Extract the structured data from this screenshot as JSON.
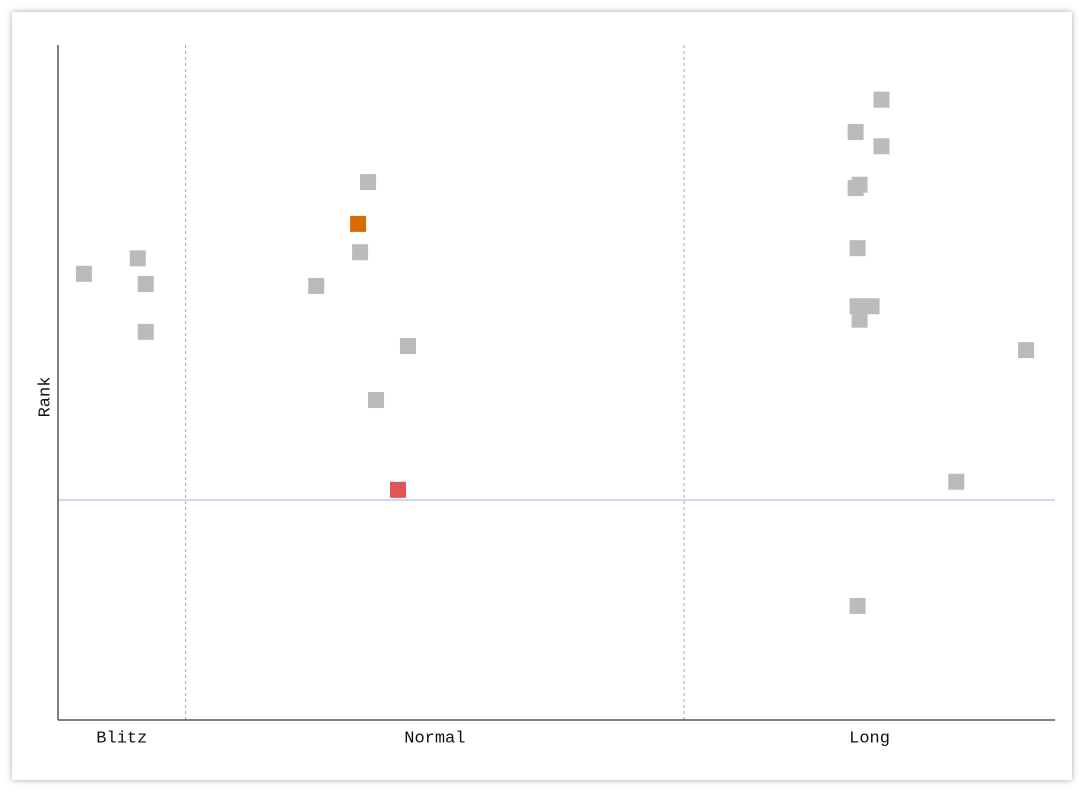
{
  "chart_data": {
    "type": "scatter",
    "ylabel": "Rank",
    "categories": [
      "Blitz",
      "Normal",
      "Long"
    ],
    "dividers": [
      12.8,
      62.8
    ],
    "xlim": [
      0,
      100
    ],
    "ylim": [
      0,
      100
    ],
    "reference_line": {
      "value": 32.6,
      "color": "#c8c8f0"
    },
    "divider_color": "#aaaaaa",
    "series": [
      {
        "x": [
          2.6,
          8.0,
          8.8,
          8.8,
          31.1,
          30.1,
          30.3,
          25.9,
          35.1,
          31.9,
          34.1,
          82.6,
          80.0,
          82.6,
          80.4,
          80.0,
          80.2,
          80.2,
          81.6,
          80.4,
          97.1,
          90.1,
          80.2
        ],
        "values": [
          66.1,
          68.4,
          64.6,
          57.5,
          79.7,
          73.5,
          69.3,
          64.3,
          55.4,
          47.4,
          34.1,
          91.9,
          87.1,
          85.0,
          79.3,
          78.8,
          69.9,
          61.3,
          61.3,
          59.3,
          54.8,
          35.3,
          16.9
        ],
        "colors": [
          "#bbbbbb",
          "#bbbbbb",
          "#bbbbbb",
          "#bbbbbb",
          "#bbbbbb",
          "#d96b00",
          "#bbbbbb",
          "#bbbbbb",
          "#bbbbbb",
          "#bbbbbb",
          "#e05555",
          "#bbbbbb",
          "#bbbbbb",
          "#bbbbbb",
          "#bbbbbb",
          "#bbbbbb",
          "#bbbbbb",
          "#bbbbbb",
          "#bbbbbb",
          "#bbbbbb",
          "#bbbbbb",
          "#bbbbbb",
          "#bbbbbb"
        ]
      }
    ]
  }
}
